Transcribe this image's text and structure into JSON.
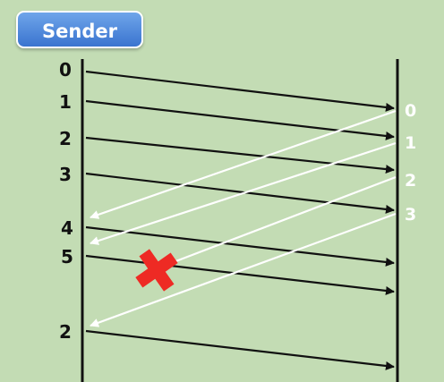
{
  "badge": {
    "label": "Sender"
  },
  "colors": {
    "background": "#c3dcb4",
    "badge": "#4a86de",
    "data_arrow": "#111111",
    "ack_arrow": "#ffffff",
    "loss_mark": "#ee2a24"
  },
  "sender_labels": [
    "0",
    "1",
    "2",
    "3",
    "4",
    "5",
    "2"
  ],
  "receiver_labels": [
    "0",
    "1",
    "2",
    "3"
  ],
  "loss_marker": {
    "icon": "red-x-icon"
  }
}
